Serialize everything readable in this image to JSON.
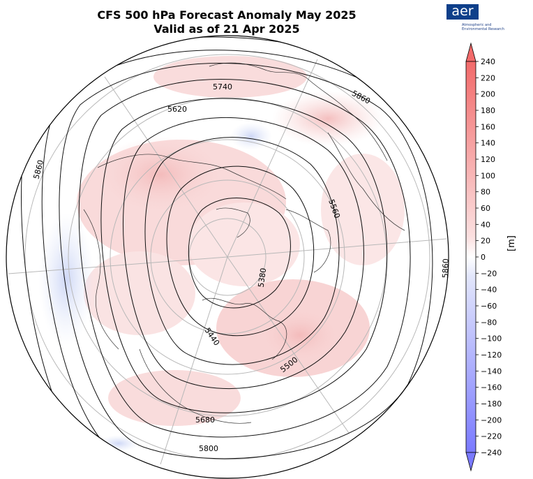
{
  "title_line1": "CFS 500 hPa Forecast Anomaly May 2025",
  "title_line2": "Valid as of 21 Apr 2025",
  "logo": {
    "text": "aer",
    "subtitle": "Atmospheric and\nEnvironmental Research"
  },
  "colorbar": {
    "unit": "[m]",
    "min": -240,
    "max": 240,
    "ticks": [
      "240",
      "220",
      "200",
      "180",
      "160",
      "140",
      "120",
      "100",
      "80",
      "60",
      "40",
      "20",
      "0",
      "−20",
      "−40",
      "−60",
      "−80",
      "−100",
      "−120",
      "−140",
      "−160",
      "−180",
      "−200",
      "−220",
      "−240"
    ],
    "high_color": "#f26a6a",
    "low_color": "#7a7aff",
    "mid_color": "#ffffff"
  },
  "contour_labels": [
    "5740",
    "5620",
    "5860",
    "5860",
    "5560",
    "5380",
    "5860",
    "5440",
    "5500",
    "5680",
    "5800"
  ],
  "colors": {
    "positive_anomaly": "#f6c9c9",
    "negative_anomaly": "#dde3f7",
    "contour": "#111111",
    "graticule": "#b8b8b8"
  }
}
